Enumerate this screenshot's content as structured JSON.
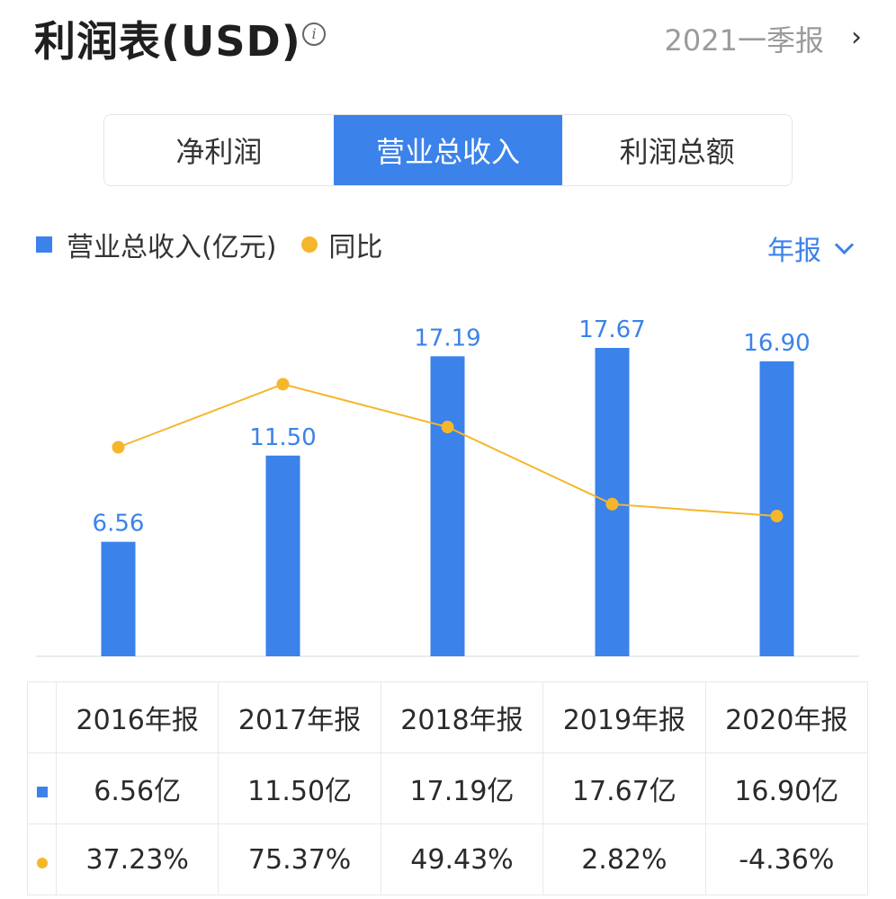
{
  "header": {
    "title": "利润表(USD)",
    "info_icon": "info-icon",
    "period": "2021一季报",
    "chevron_icon": "chevron-right-icon"
  },
  "tabs": [
    {
      "label": "净利润",
      "active": false
    },
    {
      "label": "营业总收入",
      "active": true
    },
    {
      "label": "利润总额",
      "active": false
    }
  ],
  "legend": {
    "bar_label": "营业总收入(亿元)",
    "line_label": "同比"
  },
  "period_select": {
    "label": "年报",
    "icon": "chevron-down-icon"
  },
  "colors": {
    "accent": "#3b82ea",
    "line": "#f6b62b",
    "positive": "#e04b4b",
    "negative": "#26a96a"
  },
  "chart_data": {
    "type": "bar",
    "categories": [
      "2016年报",
      "2017年报",
      "2018年报",
      "2019年报",
      "2020年报"
    ],
    "series": [
      {
        "name": "营业总收入(亿元)",
        "type": "bar",
        "values": [
          6.56,
          11.5,
          17.19,
          17.67,
          16.9
        ],
        "labels": [
          "6.56",
          "11.50",
          "17.19",
          "17.67",
          "16.90"
        ]
      },
      {
        "name": "同比",
        "type": "line",
        "values": [
          37.23,
          75.37,
          49.43,
          2.82,
          -4.36
        ]
      }
    ],
    "legend_position": "top-left"
  },
  "table": {
    "headers": [
      "2016年报",
      "2017年报",
      "2018年报",
      "2019年报",
      "2020年报"
    ],
    "revenue": [
      "6.56亿",
      "11.50亿",
      "17.19亿",
      "17.67亿",
      "16.90亿"
    ],
    "yoy": [
      "37.23%",
      "75.37%",
      "49.43%",
      "2.82%",
      "-4.36%"
    ]
  }
}
